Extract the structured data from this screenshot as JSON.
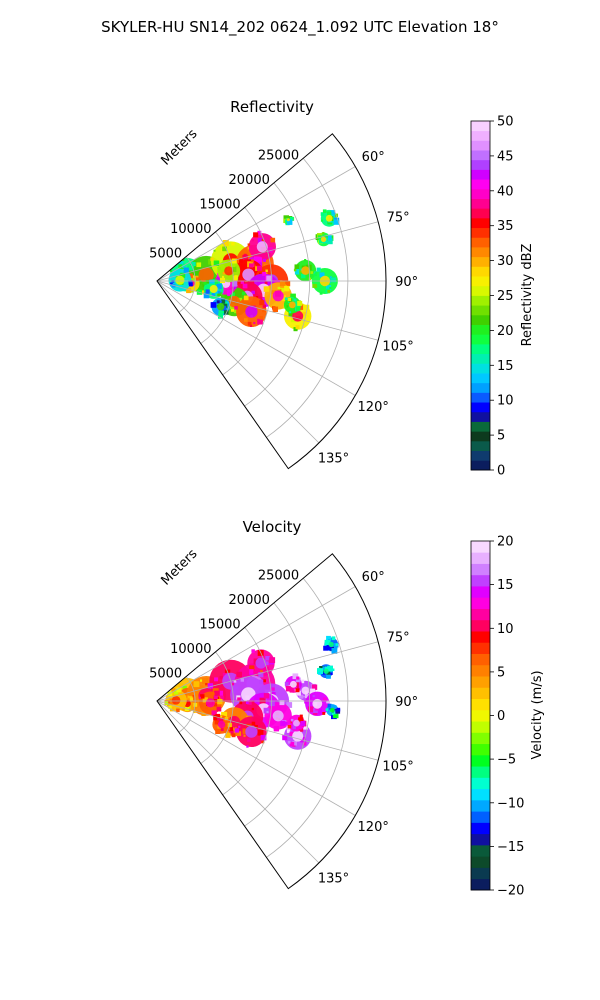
{
  "suptitle": "SKYLER-HU  SN14_202  0624_1.092 UTC Elevation 18°",
  "chart_data": [
    {
      "type": "heatmap",
      "projection": "polar-sector",
      "title": "Reflectivity",
      "range_axis_label": "Meters",
      "range_ticks": [
        5000,
        10000,
        15000,
        20000,
        25000
      ],
      "range_tick_labels": [
        "5000",
        "10000",
        "15000",
        "20000",
        "25000"
      ],
      "rmax": 30000,
      "azimuth_range": [
        50,
        145
      ],
      "azimuth_ticks": [
        60,
        75,
        90,
        105,
        120,
        135
      ],
      "azimuth_tick_labels": [
        "60°",
        "75°",
        "90°",
        "105°",
        "120°",
        "135°"
      ],
      "grid": true,
      "colorbar": {
        "label": "Reflectivity dBZ",
        "min": 0,
        "max": 50,
        "ticks": [
          0,
          5,
          10,
          15,
          20,
          25,
          30,
          35,
          40,
          45,
          50
        ],
        "tick_labels": [
          "0",
          "5",
          "10",
          "15",
          "20",
          "25",
          "30",
          "35",
          "40",
          "45",
          "50"
        ],
        "colors": [
          "#0b1d5e",
          "#0f3b6e",
          "#0a5a4a",
          "#0d3a1e",
          "#0a6a3a",
          "#1010a0",
          "#0000ff",
          "#0a5aff",
          "#00a0ff",
          "#00c8ff",
          "#00e0e0",
          "#00f0b0",
          "#00ff80",
          "#10ff40",
          "#20f020",
          "#40d000",
          "#70e000",
          "#a0f000",
          "#d8f800",
          "#f8f000",
          "#ffd800",
          "#ffb000",
          "#ff8800",
          "#ff6000",
          "#ff3000",
          "#ff0000",
          "#ff0050",
          "#ff0090",
          "#ff00c8",
          "#ff00f0",
          "#d000ff",
          "#b040ff",
          "#c070ff",
          "#e090ff",
          "#f0b0ff",
          "#f8d0ff"
        ]
      }
    },
    {
      "type": "heatmap",
      "projection": "polar-sector",
      "title": "Velocity",
      "range_axis_label": "Meters",
      "range_ticks": [
        5000,
        10000,
        15000,
        20000,
        25000
      ],
      "range_tick_labels": [
        "5000",
        "10000",
        "15000",
        "20000",
        "25000"
      ],
      "rmax": 30000,
      "azimuth_range": [
        50,
        145
      ],
      "azimuth_ticks": [
        60,
        75,
        90,
        105,
        120,
        135
      ],
      "azimuth_tick_labels": [
        "60°",
        "75°",
        "90°",
        "105°",
        "120°",
        "135°"
      ],
      "grid": true,
      "colorbar": {
        "label": "Velocity (m/s)",
        "min": -20,
        "max": 20,
        "ticks": [
          -20,
          -15,
          -10,
          -5,
          0,
          5,
          10,
          15,
          20
        ],
        "tick_labels": [
          "−20",
          "−15",
          "−10",
          "−5",
          "0",
          "5",
          "10",
          "15",
          "20"
        ],
        "colors": [
          "#0b1d5e",
          "#0a3a50",
          "#0d4a2a",
          "#0a5a3a",
          "#1010a0",
          "#0000ff",
          "#0060ff",
          "#00a8ff",
          "#00e0ff",
          "#00ffd0",
          "#00ff80",
          "#00ff20",
          "#40ff00",
          "#80ff00",
          "#c0ff00",
          "#f0f800",
          "#ffe000",
          "#ffc000",
          "#ffa000",
          "#ff8000",
          "#ff6000",
          "#ff3000",
          "#ff0000",
          "#ff0060",
          "#ff00a0",
          "#ff00e0",
          "#e000ff",
          "#c040ff",
          "#d080ff",
          "#e8b0ff",
          "#f8d8ff"
        ]
      }
    }
  ]
}
